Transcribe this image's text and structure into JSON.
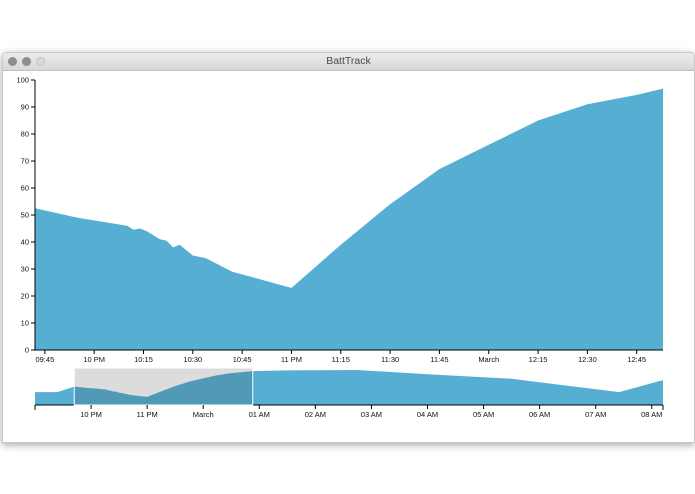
{
  "window": {
    "title": "BattTrack"
  },
  "colors": {
    "area": "#56afd2",
    "brush": "#d9d9d9",
    "axis": "#000000"
  },
  "chart_data": [
    {
      "type": "area",
      "role": "focus",
      "ylim": [
        0,
        100
      ],
      "y_ticks": [
        "0",
        "10",
        "20",
        "30",
        "40",
        "50",
        "60",
        "70",
        "80",
        "90",
        "100"
      ],
      "x_ticks": [
        "09:45",
        "10 PM",
        "10:15",
        "10:30",
        "10:45",
        "11 PM",
        "11:15",
        "11:30",
        "11:45",
        "March",
        "12:15",
        "12:30",
        "12:45"
      ],
      "x_range": [
        "21:42",
        "00:53"
      ],
      "grid": false
    },
    {
      "type": "area",
      "role": "context",
      "x_ticks": [
        "10 PM",
        "11 PM",
        "March",
        "01 AM",
        "02 AM",
        "03 AM",
        "04 AM",
        "05 AM",
        "06 AM",
        "07 AM",
        "08 AM"
      ],
      "x_range": [
        "21:00",
        "08:12"
      ],
      "brush": [
        "21:42",
        "00:53"
      ]
    }
  ],
  "series": {
    "x": [
      "21:00",
      "21:24",
      "21:42",
      "21:55",
      "22:10",
      "22:12",
      "22:14",
      "22:16",
      "22:20",
      "22:22",
      "22:24",
      "22:26",
      "22:30",
      "22:32",
      "22:34",
      "22:42",
      "22:57",
      "23:00",
      "23:15",
      "23:30",
      "23:45",
      "00:00",
      "00:15",
      "00:30",
      "00:45",
      "00:53",
      "01:30",
      "02:45",
      "04:00",
      "05:30",
      "07:25",
      "08:12"
    ],
    "y": [
      37,
      37,
      52.5,
      49,
      46,
      44.5,
      45,
      44,
      41,
      40.5,
      38,
      39,
      35,
      34.5,
      34,
      29,
      24,
      23,
      39,
      54,
      67,
      76,
      85,
      91,
      94.5,
      96.8,
      99,
      100,
      88,
      75,
      37,
      71
    ]
  }
}
